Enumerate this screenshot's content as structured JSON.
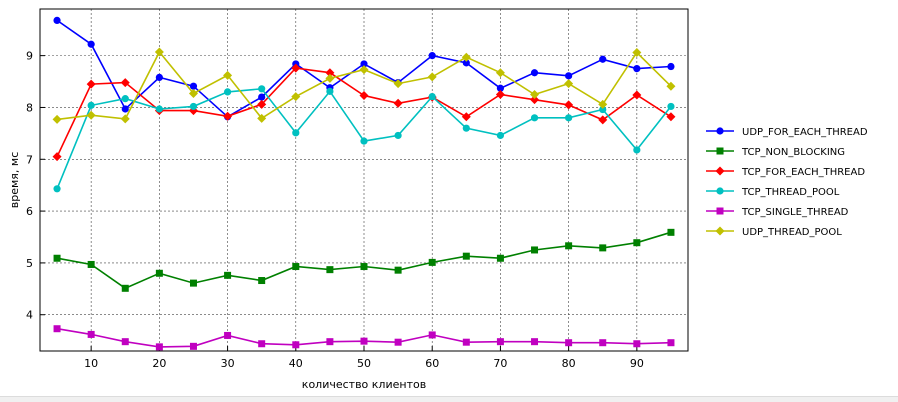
{
  "chart_data": {
    "type": "line",
    "title": "",
    "xlabel": "количество клиентов",
    "ylabel": "время, мс",
    "xlim": [
      2.5,
      97.5
    ],
    "ylim": [
      3.3,
      9.9
    ],
    "xticks": [
      10,
      20,
      30,
      40,
      50,
      60,
      70,
      80,
      90
    ],
    "yticks": [
      4,
      5,
      6,
      7,
      8,
      9
    ],
    "grid": true,
    "legend_position": "right",
    "x": [
      5,
      10,
      15,
      20,
      25,
      30,
      35,
      40,
      45,
      50,
      55,
      60,
      65,
      70,
      75,
      80,
      85,
      90,
      95
    ],
    "series": [
      {
        "name": "UDP_FOR_EACH_THREAD",
        "color": "#0000ff",
        "marker": "circle",
        "values": [
          9.68,
          9.22,
          7.97,
          8.58,
          8.41,
          7.82,
          8.2,
          8.84,
          8.38,
          8.84,
          8.48,
          9.0,
          8.86,
          8.37,
          8.67,
          8.61,
          8.93,
          8.75,
          8.79
        ]
      },
      {
        "name": "TCP_NON_BLOCKING",
        "color": "#008000",
        "marker": "square",
        "values": [
          5.09,
          4.97,
          4.51,
          4.8,
          4.61,
          4.76,
          4.66,
          4.93,
          4.87,
          4.93,
          4.86,
          5.01,
          5.13,
          5.09,
          5.25,
          5.33,
          5.29,
          5.39,
          5.59
        ]
      },
      {
        "name": "TCP_FOR_EACH_THREAD",
        "color": "#ff0000",
        "marker": "diamond",
        "values": [
          7.05,
          8.45,
          8.48,
          7.94,
          7.94,
          7.83,
          8.06,
          8.76,
          8.67,
          8.23,
          8.08,
          8.2,
          7.82,
          8.25,
          8.15,
          8.05,
          7.76,
          8.24,
          7.82
        ]
      },
      {
        "name": "TCP_THREAD_POOL",
        "color": "#00c0c0",
        "marker": "circle",
        "values": [
          6.43,
          8.04,
          8.17,
          7.97,
          8.02,
          8.3,
          8.36,
          7.51,
          8.31,
          7.35,
          7.46,
          8.21,
          7.6,
          7.46,
          7.8,
          7.8,
          7.96,
          7.18,
          8.02
        ]
      },
      {
        "name": "TCP_SINGLE_THREAD",
        "color": "#c000c0",
        "marker": "square",
        "values": [
          3.73,
          3.62,
          3.48,
          3.38,
          3.39,
          3.6,
          3.44,
          3.42,
          3.48,
          3.49,
          3.47,
          3.61,
          3.47,
          3.48,
          3.48,
          3.46,
          3.46,
          3.44,
          3.46
        ]
      },
      {
        "name": "UDP_THREAD_POOL",
        "color": "#c0c000",
        "marker": "diamond",
        "values": [
          7.77,
          7.85,
          7.78,
          9.07,
          8.27,
          8.62,
          7.79,
          8.21,
          8.56,
          8.73,
          8.46,
          8.59,
          8.97,
          8.67,
          8.25,
          8.46,
          8.06,
          9.06,
          8.41
        ]
      }
    ]
  }
}
